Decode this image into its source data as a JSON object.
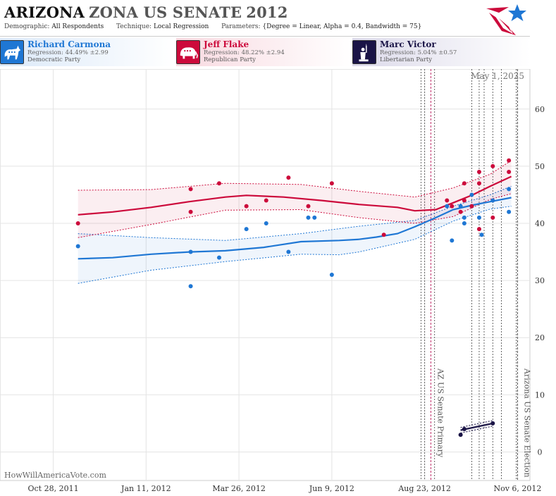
{
  "header": {
    "title_state": "ARIZONA",
    "title_rest": "ZONA US SENATE",
    "title_year": "2012",
    "demographic_label": "Demographic:",
    "demographic_value": "All Respondents",
    "technique_label": "Technique:",
    "technique_value": "Local Regression",
    "parameters_label": "Parameters:",
    "parameters_value": "{Degree = Linear, Alpha = 0.4, Bandwidth = 75}"
  },
  "candidates": [
    {
      "name": "Richard Carmona",
      "regression": "Regression: 44.49% ±2.99",
      "party": "Democratic Party",
      "color": "#1f77d4",
      "icon": "donkey-icon"
    },
    {
      "name": "Jeff Flake",
      "regression": "Regression: 48.22% ±2.94",
      "party": "Republican Party",
      "color": "#cc0a3b",
      "icon": "elephant-icon"
    },
    {
      "name": "Marc Victor",
      "regression": "Regression: 5.04% ±0.57",
      "party": "Libertarian Party",
      "color": "#1a1446",
      "icon": "statue-of-liberty-icon"
    }
  ],
  "watermark": "HowWillAmericaVote.com",
  "current_date_label": "May 1, 2025",
  "chart_data": {
    "type": "scatter",
    "title": "ARIZONA ZONA US SENATE 2012",
    "x_axis": {
      "type": "date",
      "ticks": [
        {
          "date": "2011-10-28",
          "label": "Oct 28, 2011"
        },
        {
          "date": "2012-01-11",
          "label": "Jan 11, 2012"
        },
        {
          "date": "2012-03-26",
          "label": "Mar 26, 2012"
        },
        {
          "date": "2012-06-09",
          "label": "Jun 9, 2012"
        },
        {
          "date": "2012-08-23",
          "label": "Aug 23, 2012"
        },
        {
          "date": "2012-11-06",
          "label": "Nov 6, 2012"
        }
      ],
      "range": [
        "2011-09-15",
        "2012-11-16"
      ]
    },
    "y_axis": {
      "ticks": [
        0,
        10,
        20,
        30,
        40,
        50,
        60
      ],
      "range": [
        -5,
        67
      ],
      "position": "right"
    },
    "grid": true,
    "events": [
      {
        "date": "2012-08-28",
        "label": "AZ US Senate Primary",
        "color": "#c0306a"
      },
      {
        "date": "2012-11-06",
        "label": "Arizona US Senate Election",
        "color": "#555555"
      }
    ],
    "poll_lines": [
      "2012-08-20",
      "2012-08-23",
      "2012-08-31",
      "2012-09-30",
      "2012-10-06",
      "2012-10-10",
      "2012-10-17",
      "2012-10-24",
      "2012-11-05"
    ],
    "series": [
      {
        "name": "Richard Carmona",
        "color": "#1f77d4",
        "points": [
          {
            "x": "2011-11-17",
            "y": 36
          },
          {
            "x": "2012-02-16",
            "y": 35
          },
          {
            "x": "2012-02-16",
            "y": 29
          },
          {
            "x": "2012-03-10",
            "y": 34
          },
          {
            "x": "2012-04-01",
            "y": 39
          },
          {
            "x": "2012-04-17",
            "y": 40
          },
          {
            "x": "2012-05-05",
            "y": 35
          },
          {
            "x": "2012-05-21",
            "y": 41
          },
          {
            "x": "2012-05-26",
            "y": 41
          },
          {
            "x": "2012-06-09",
            "y": 31
          },
          {
            "x": "2012-09-10",
            "y": 43
          },
          {
            "x": "2012-09-14",
            "y": 37
          },
          {
            "x": "2012-09-21",
            "y": 43
          },
          {
            "x": "2012-09-24",
            "y": 41
          },
          {
            "x": "2012-09-24",
            "y": 40
          },
          {
            "x": "2012-09-30",
            "y": 43
          },
          {
            "x": "2012-09-30",
            "y": 45
          },
          {
            "x": "2012-10-06",
            "y": 41
          },
          {
            "x": "2012-10-08",
            "y": 38
          },
          {
            "x": "2012-10-17",
            "y": 44
          },
          {
            "x": "2012-10-30",
            "y": 46
          },
          {
            "x": "2012-10-30",
            "y": 42
          }
        ],
        "trend": [
          {
            "x": "2011-11-17",
            "y": 33.8
          },
          {
            "x": "2011-12-15",
            "y": 34.0
          },
          {
            "x": "2012-01-15",
            "y": 34.6
          },
          {
            "x": "2012-02-15",
            "y": 35.0
          },
          {
            "x": "2012-03-15",
            "y": 35.2
          },
          {
            "x": "2012-04-15",
            "y": 35.8
          },
          {
            "x": "2012-05-15",
            "y": 36.8
          },
          {
            "x": "2012-06-15",
            "y": 37.0
          },
          {
            "x": "2012-07-01",
            "y": 37.2
          },
          {
            "x": "2012-07-15",
            "y": 37.6
          },
          {
            "x": "2012-08-01",
            "y": 38.2
          },
          {
            "x": "2012-08-15",
            "y": 39.4
          },
          {
            "x": "2012-09-01",
            "y": 41.0
          },
          {
            "x": "2012-09-15",
            "y": 42.4
          },
          {
            "x": "2012-10-01",
            "y": 43.2
          },
          {
            "x": "2012-10-15",
            "y": 43.8
          },
          {
            "x": "2012-11-01",
            "y": 44.5
          }
        ],
        "band_upper": [
          {
            "x": "2011-11-17",
            "y": 38.2
          },
          {
            "x": "2012-01-15",
            "y": 37.5
          },
          {
            "x": "2012-03-15",
            "y": 37.0
          },
          {
            "x": "2012-05-15",
            "y": 38.2
          },
          {
            "x": "2012-07-01",
            "y": 39.5
          },
          {
            "x": "2012-08-15",
            "y": 40.5
          },
          {
            "x": "2012-09-15",
            "y": 43.0
          },
          {
            "x": "2012-10-15",
            "y": 45.0
          },
          {
            "x": "2012-11-01",
            "y": 46.5
          }
        ],
        "band_lower": [
          {
            "x": "2011-11-17",
            "y": 29.5
          },
          {
            "x": "2012-01-15",
            "y": 31.8
          },
          {
            "x": "2012-03-15",
            "y": 33.3
          },
          {
            "x": "2012-05-15",
            "y": 34.6
          },
          {
            "x": "2012-06-15",
            "y": 34.5
          },
          {
            "x": "2012-07-01",
            "y": 35.0
          },
          {
            "x": "2012-08-15",
            "y": 37.2
          },
          {
            "x": "2012-09-15",
            "y": 40.4
          },
          {
            "x": "2012-10-15",
            "y": 42.5
          },
          {
            "x": "2012-11-01",
            "y": 43.0
          }
        ]
      },
      {
        "name": "Jeff Flake",
        "color": "#cc0a3b",
        "points": [
          {
            "x": "2011-11-17",
            "y": 40
          },
          {
            "x": "2012-02-16",
            "y": 46
          },
          {
            "x": "2012-02-16",
            "y": 42
          },
          {
            "x": "2012-03-10",
            "y": 47
          },
          {
            "x": "2012-04-01",
            "y": 43
          },
          {
            "x": "2012-04-17",
            "y": 44
          },
          {
            "x": "2012-05-05",
            "y": 48
          },
          {
            "x": "2012-05-21",
            "y": 43
          },
          {
            "x": "2012-06-09",
            "y": 47
          },
          {
            "x": "2012-07-21",
            "y": 38
          },
          {
            "x": "2012-09-10",
            "y": 44
          },
          {
            "x": "2012-09-14",
            "y": 43
          },
          {
            "x": "2012-09-21",
            "y": 42
          },
          {
            "x": "2012-09-24",
            "y": 44
          },
          {
            "x": "2012-09-24",
            "y": 47
          },
          {
            "x": "2012-09-30",
            "y": 43
          },
          {
            "x": "2012-10-06",
            "y": 49
          },
          {
            "x": "2012-10-06",
            "y": 47
          },
          {
            "x": "2012-10-06",
            "y": 39
          },
          {
            "x": "2012-10-17",
            "y": 50
          },
          {
            "x": "2012-10-17",
            "y": 41
          },
          {
            "x": "2012-10-30",
            "y": 51
          },
          {
            "x": "2012-10-30",
            "y": 49
          }
        ],
        "trend": [
          {
            "x": "2011-11-17",
            "y": 41.5
          },
          {
            "x": "2011-12-15",
            "y": 42.0
          },
          {
            "x": "2012-01-15",
            "y": 42.8
          },
          {
            "x": "2012-02-15",
            "y": 43.8
          },
          {
            "x": "2012-03-15",
            "y": 44.6
          },
          {
            "x": "2012-04-01",
            "y": 44.9
          },
          {
            "x": "2012-05-01",
            "y": 44.6
          },
          {
            "x": "2012-06-01",
            "y": 44.0
          },
          {
            "x": "2012-07-01",
            "y": 43.3
          },
          {
            "x": "2012-08-01",
            "y": 42.8
          },
          {
            "x": "2012-08-15",
            "y": 42.2
          },
          {
            "x": "2012-09-01",
            "y": 42.4
          },
          {
            "x": "2012-09-15",
            "y": 43.6
          },
          {
            "x": "2012-10-01",
            "y": 45.0
          },
          {
            "x": "2012-10-15",
            "y": 46.5
          },
          {
            "x": "2012-11-01",
            "y": 48.2
          }
        ],
        "band_upper": [
          {
            "x": "2011-11-17",
            "y": 45.8
          },
          {
            "x": "2012-01-15",
            "y": 45.9
          },
          {
            "x": "2012-03-15",
            "y": 47.0
          },
          {
            "x": "2012-05-15",
            "y": 46.8
          },
          {
            "x": "2012-07-01",
            "y": 45.6
          },
          {
            "x": "2012-08-15",
            "y": 44.6
          },
          {
            "x": "2012-09-15",
            "y": 46.2
          },
          {
            "x": "2012-10-15",
            "y": 48.6
          },
          {
            "x": "2012-11-01",
            "y": 51.0
          }
        ],
        "band_lower": [
          {
            "x": "2011-11-17",
            "y": 37.5
          },
          {
            "x": "2012-01-15",
            "y": 39.8
          },
          {
            "x": "2012-03-15",
            "y": 42.3
          },
          {
            "x": "2012-05-15",
            "y": 42.4
          },
          {
            "x": "2012-07-01",
            "y": 41.0
          },
          {
            "x": "2012-08-15",
            "y": 40.0
          },
          {
            "x": "2012-09-15",
            "y": 41.2
          },
          {
            "x": "2012-10-15",
            "y": 44.2
          },
          {
            "x": "2012-11-01",
            "y": 45.2
          }
        ]
      },
      {
        "name": "Marc Victor",
        "color": "#1a1446",
        "points": [
          {
            "x": "2012-09-21",
            "y": 3
          },
          {
            "x": "2012-09-24",
            "y": 4
          },
          {
            "x": "2012-10-17",
            "y": 5
          }
        ],
        "trend": [
          {
            "x": "2012-09-21",
            "y": 3.8
          },
          {
            "x": "2012-10-17",
            "y": 5.0
          }
        ],
        "band_upper": [
          {
            "x": "2012-09-21",
            "y": 4.3
          },
          {
            "x": "2012-10-17",
            "y": 5.5
          }
        ],
        "band_lower": [
          {
            "x": "2012-09-21",
            "y": 3.3
          },
          {
            "x": "2012-10-17",
            "y": 4.5
          }
        ]
      }
    ]
  }
}
